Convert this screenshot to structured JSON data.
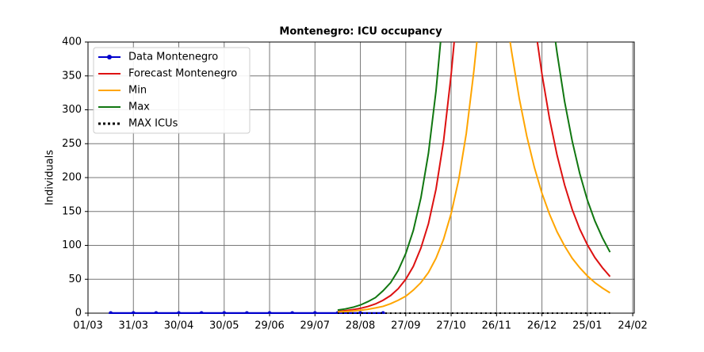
{
  "chart_data": {
    "type": "line",
    "title": "Montenegro: ICU occupancy",
    "ylabel": "Individuals",
    "xlim": [
      0,
      361
    ],
    "ylim": [
      0,
      400
    ],
    "xticks": [
      {
        "value": 0,
        "label": "01/03"
      },
      {
        "value": 30,
        "label": "31/03"
      },
      {
        "value": 60,
        "label": "30/04"
      },
      {
        "value": 90,
        "label": "30/05"
      },
      {
        "value": 120,
        "label": "29/06"
      },
      {
        "value": 150,
        "label": "29/07"
      },
      {
        "value": 180,
        "label": "28/08"
      },
      {
        "value": 210,
        "label": "27/09"
      },
      {
        "value": 240,
        "label": "27/10"
      },
      {
        "value": 270,
        "label": "26/11"
      },
      {
        "value": 300,
        "label": "26/12"
      },
      {
        "value": 330,
        "label": "25/01"
      },
      {
        "value": 360,
        "label": "24/02"
      }
    ],
    "yticks": [
      0,
      50,
      100,
      150,
      200,
      250,
      300,
      350,
      400
    ],
    "grid": true,
    "legend": "upper left",
    "series": [
      {
        "name": "Data Montenegro",
        "color": "#0000cc",
        "style": "marker",
        "x": [
          15,
          30,
          45,
          60,
          75,
          90,
          105,
          120,
          135,
          150,
          165,
          180,
          195
        ],
        "values": [
          0,
          0,
          0,
          0,
          0,
          0,
          0,
          0,
          0,
          0,
          0,
          0,
          0
        ]
      },
      {
        "name": "Forecast Montenegro",
        "color": "#dd1111",
        "style": "solid",
        "x": [
          165,
          170,
          175,
          180,
          185,
          190,
          195,
          200,
          205,
          210,
          215,
          220,
          225,
          230,
          235,
          240,
          242,
          270,
          297,
          300,
          305,
          310,
          315,
          320,
          325,
          330,
          335,
          340,
          345
        ],
        "values": [
          2.7,
          3.7,
          5.2,
          7.1,
          9.9,
          13.6,
          19,
          26,
          36,
          50,
          69,
          96,
          132,
          183,
          254,
          352,
          400,
          null,
          400,
          353,
          287,
          233,
          189,
          153,
          124,
          101,
          82,
          67,
          54
        ]
      },
      {
        "name": "Min",
        "color": "#ffa500",
        "style": "solid",
        "x": [
          165,
          170,
          175,
          180,
          185,
          190,
          195,
          200,
          205,
          210,
          215,
          220,
          225,
          230,
          235,
          240,
          245,
          250,
          255,
          257,
          268,
          279,
          280,
          285,
          290,
          295,
          300,
          305,
          310,
          315,
          320,
          325,
          330,
          335,
          340,
          345
        ],
        "values": [
          1.8,
          2.3,
          3.2,
          4.3,
          5.7,
          7.7,
          10,
          14,
          19,
          25,
          34,
          45,
          60,
          81,
          109,
          147,
          197,
          265,
          357,
          400,
          null,
          400,
          385,
          317,
          261,
          215,
          177,
          146,
          120,
          99,
          81,
          67,
          55,
          45,
          37,
          30
        ]
      },
      {
        "name": "Max",
        "color": "#117711",
        "style": "solid",
        "x": [
          165,
          170,
          175,
          180,
          185,
          190,
          195,
          200,
          205,
          210,
          215,
          220,
          225,
          230,
          233,
          270,
          309,
          310,
          315,
          320,
          325,
          330,
          335,
          340,
          345
        ],
        "values": [
          4.5,
          6.2,
          8.6,
          12,
          17,
          23,
          33,
          45,
          63,
          88,
          122,
          170,
          236,
          328,
          400,
          null,
          400,
          384,
          312,
          254,
          206,
          167,
          136,
          111,
          90
        ]
      },
      {
        "name": "MAX ICUs",
        "color": "#000000",
        "style": "dotted",
        "x": [
          165,
          345
        ],
        "values": [
          0,
          0
        ]
      }
    ]
  }
}
